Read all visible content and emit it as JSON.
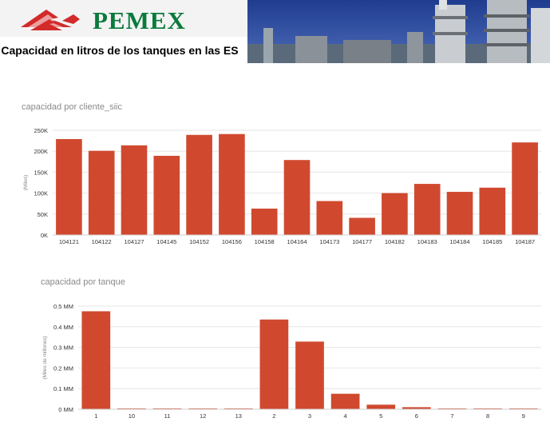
{
  "header": {
    "brand": "PEMEX",
    "title": "Capacidad en litros de los tanques en las ES",
    "logo_icon": "pemex-eagle-logo",
    "photo_icon": "refinery-photo"
  },
  "colors": {
    "bar": "#d0492f",
    "brand_green": "#0a7a3c",
    "brand_red": "#d32a2a",
    "photo_sky": "#2d4a9a"
  },
  "chart_data": [
    {
      "type": "bar",
      "title": "capacidad por cliente_siic",
      "ylabel": "(Miles)",
      "categories": [
        "104121",
        "104122",
        "104127",
        "104145",
        "104152",
        "104156",
        "104158",
        "104164",
        "104173",
        "104177",
        "104182",
        "104183",
        "104184",
        "104185",
        "104187"
      ],
      "values": [
        229000,
        201000,
        214000,
        189000,
        239000,
        241000,
        63000,
        179000,
        81000,
        41000,
        100000,
        122000,
        103000,
        113000,
        221000
      ],
      "ylim": [
        0,
        250000
      ],
      "yticks": [
        0,
        50000,
        100000,
        150000,
        200000,
        250000
      ],
      "ytick_labels": [
        "0K",
        "50K",
        "100K",
        "150K",
        "200K",
        "250K"
      ],
      "grid": true
    },
    {
      "type": "bar",
      "title": "capacidad por tanque",
      "ylabel": "(Miles de millones)",
      "categories": [
        "1",
        "10",
        "11",
        "12",
        "13",
        "2",
        "3",
        "4",
        "5",
        "6",
        "7",
        "8",
        "9"
      ],
      "values": [
        0.475,
        0.004,
        0.004,
        0.004,
        0.004,
        0.435,
        0.328,
        0.075,
        0.022,
        0.01,
        0.004,
        0.004,
        0.004
      ],
      "ylim": [
        0,
        0.5
      ],
      "yticks": [
        0,
        0.1,
        0.2,
        0.3,
        0.4,
        0.5
      ],
      "ytick_labels": [
        "0 MM",
        "0.1 MM",
        "0.2 MM",
        "0.3 MM",
        "0.4 MM",
        "0.5 MM"
      ],
      "grid": true
    }
  ]
}
